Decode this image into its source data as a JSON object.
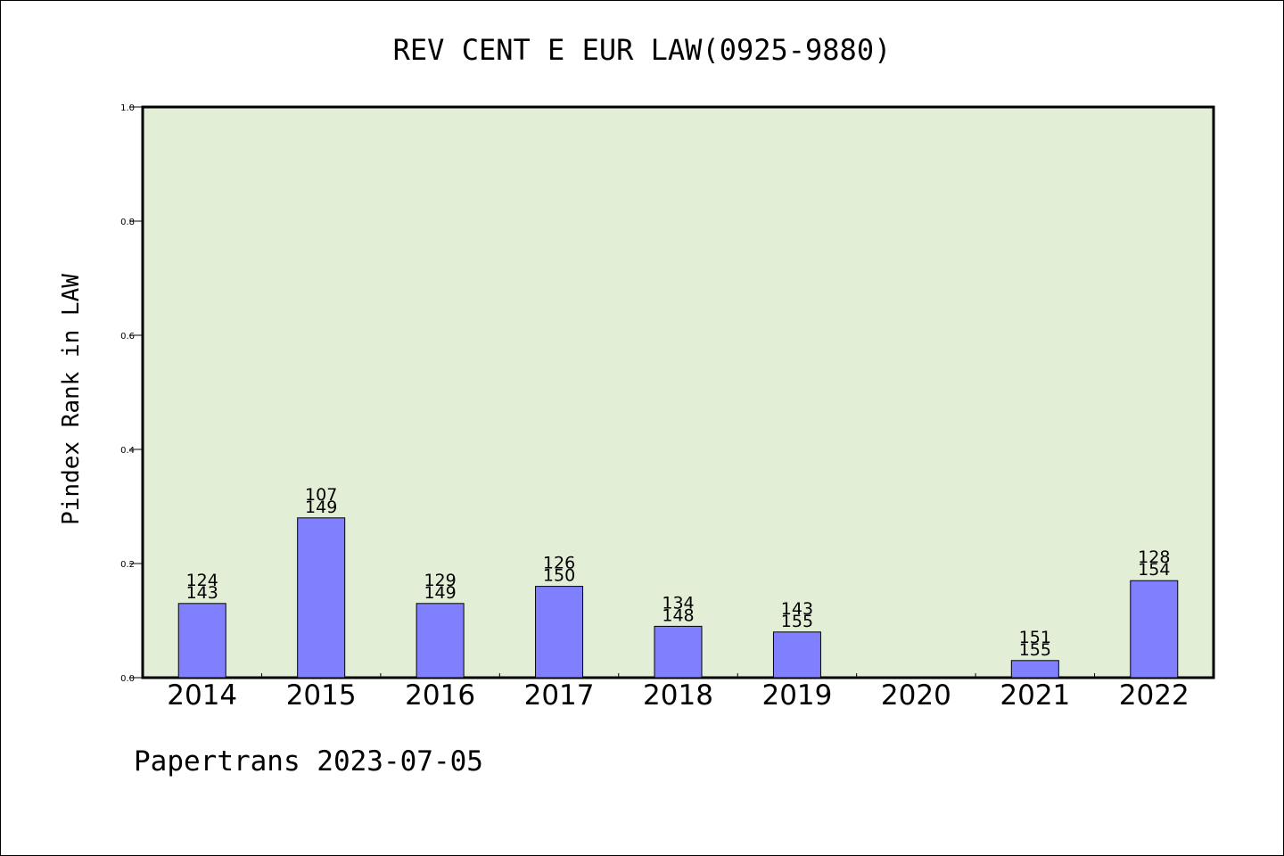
{
  "chart_data": {
    "type": "bar",
    "title": "REV CENT E EUR LAW(0925-9880)",
    "xlabel": "",
    "ylabel": "Pindex Rank in LAW",
    "ylim": [
      0,
      1.0
    ],
    "yticks": [
      "0.0",
      "0.2",
      "0.4",
      "0.6",
      "0.8",
      "1.0"
    ],
    "categories": [
      "2014",
      "2015",
      "2016",
      "2017",
      "2018",
      "2019",
      "2020",
      "2021",
      "2022"
    ],
    "values": [
      0.13,
      0.28,
      0.13,
      0.16,
      0.09,
      0.08,
      0,
      0.03,
      0.17
    ],
    "rank_labels": [
      "124",
      "107",
      "129",
      "126",
      "134",
      "143",
      "",
      "151",
      "128"
    ],
    "total_labels": [
      "143",
      "149",
      "149",
      "150",
      "148",
      "155",
      "",
      "155",
      "154"
    ],
    "grid": false,
    "legend": "none",
    "plot_background": "#e2efd6",
    "bar_color": "#8080ff",
    "bar_edge_color": "#000000"
  },
  "footer": "Papertrans 2023-07-05"
}
